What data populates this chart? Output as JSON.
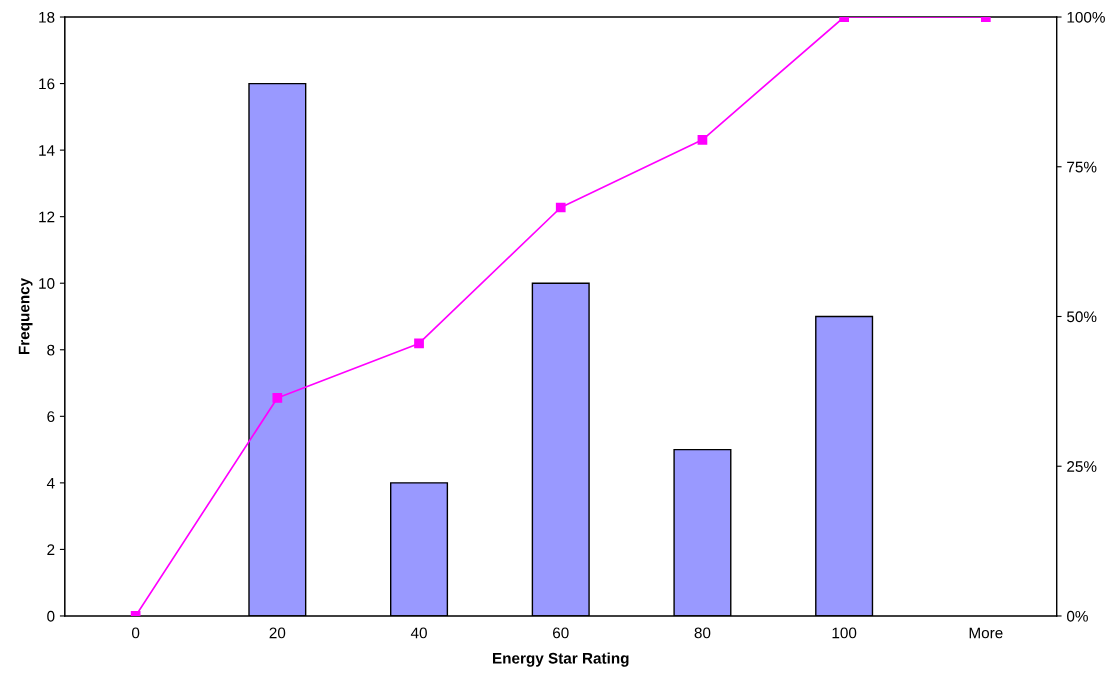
{
  "chart_data": {
    "type": "bar",
    "xlabel": "Energy Star Rating",
    "ylabel": "Frequency",
    "categories": [
      "0",
      "20",
      "40",
      "60",
      "80",
      "100",
      "More"
    ],
    "series": [
      {
        "color": "#9999ff",
        "values": [
          0,
          16,
          4,
          10,
          5,
          9,
          0
        ]
      },
      {
        "type": "line",
        "axis": "y2",
        "color": "#ff00ff",
        "marker": "square",
        "line_style": "solid",
        "values": [
          0,
          36.4,
          45.5,
          68.2,
          79.5,
          100,
          100
        ]
      }
    ],
    "ylim": [
      0,
      18
    ],
    "yticks": [
      0,
      2,
      4,
      6,
      8,
      10,
      12,
      14,
      16,
      18
    ],
    "y2lim": [
      0,
      100
    ],
    "y2ticks": [
      {
        "value": 0,
        "label": "0%"
      },
      {
        "value": 25,
        "label": "25%"
      },
      {
        "value": 50,
        "label": "50%"
      },
      {
        "value": 75,
        "label": "75%"
      },
      {
        "value": 100,
        "label": "100%"
      }
    ],
    "grid": false,
    "legend": false
  }
}
